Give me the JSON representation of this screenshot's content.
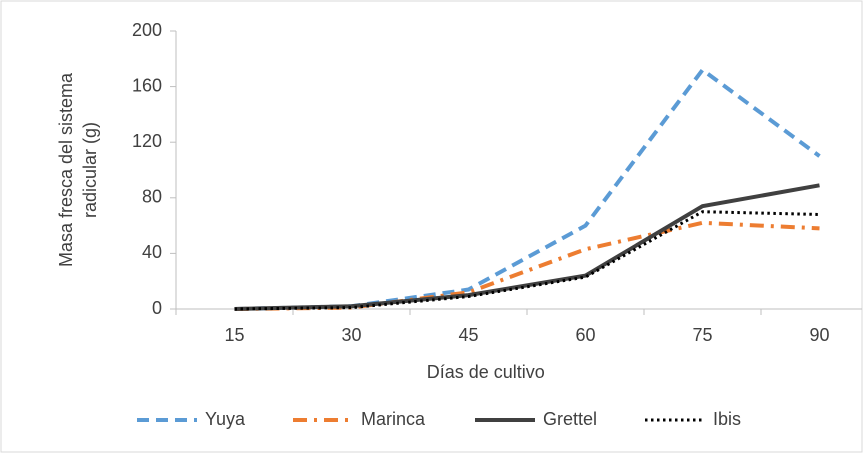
{
  "chart_data": {
    "type": "line",
    "xlabel": "Días de cultivo",
    "ylabel": [
      "Masa fresca del sistema",
      "radicular (g)"
    ],
    "categories": [
      "15",
      "30",
      "45",
      "60",
      "75",
      "90"
    ],
    "series": [
      {
        "name": "Yuya",
        "color": "#5b9bd5",
        "dash": "dashed",
        "values": [
          0,
          2,
          14,
          60,
          172,
          110
        ]
      },
      {
        "name": "Marinca",
        "color": "#ed7d31",
        "dash": "dashdot",
        "values": [
          0,
          1,
          12,
          43,
          62,
          58
        ]
      },
      {
        "name": "Grettel",
        "color": "#404040",
        "dash": "solid",
        "values": [
          0,
          2,
          10,
          24,
          74,
          89
        ]
      },
      {
        "name": "Ibis",
        "color": "#000000",
        "dash": "dotted",
        "values": [
          0,
          1,
          9,
          23,
          70,
          68
        ]
      }
    ],
    "ylim": [
      0,
      200
    ],
    "yticks": [
      0,
      40,
      80,
      120,
      160,
      200
    ],
    "grid": false,
    "legend": "bottom"
  }
}
